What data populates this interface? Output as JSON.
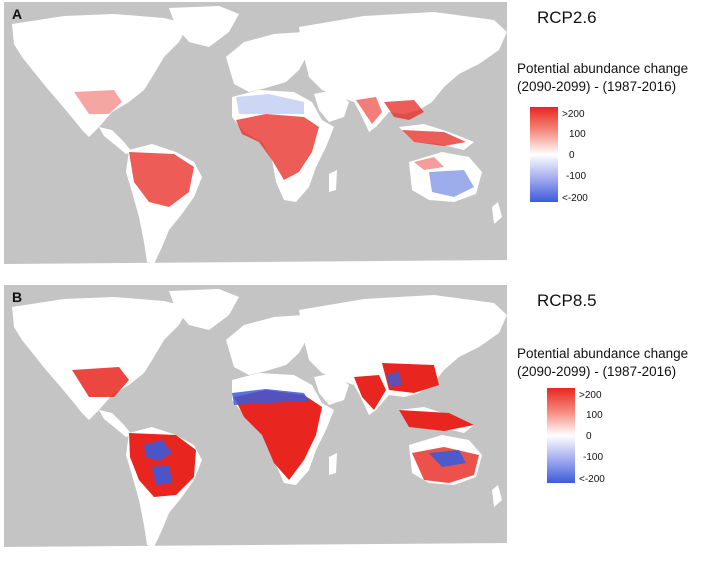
{
  "panels": [
    {
      "letter": "A",
      "scenario": "RCP2.6",
      "legend_title_line1": "Potential abundance change",
      "legend_title_line2": "(2090-2099) - (1987-2016)",
      "legend_ticks": [
        ">200",
        "100",
        "0",
        "-100",
        "<-200"
      ]
    },
    {
      "letter": "B",
      "scenario": "RCP8.5",
      "legend_title_line1": "Potential abundance change",
      "legend_title_line2": "(2090-2099) - (1987-2016)",
      "legend_ticks": [
        ">200",
        "100",
        "0",
        "-100",
        "<-200"
      ]
    }
  ],
  "colors": {
    "ocean": "#c4c4c4",
    "land": "#ffffff",
    "increase": "#e8261f",
    "decrease": "#3b5bd9"
  }
}
